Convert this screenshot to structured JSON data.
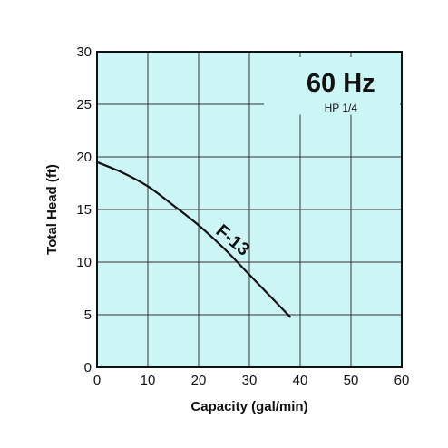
{
  "chart_data": {
    "type": "line",
    "title": "60 Hz",
    "subtitle": "HP 1/4",
    "xlabel": "Capacity (gal/min)",
    "ylabel": "Total Head (ft)",
    "xlim": [
      0,
      60
    ],
    "ylim": [
      0,
      30
    ],
    "xticks": [
      "0",
      "10",
      "20",
      "30",
      "40",
      "50",
      "60"
    ],
    "yticks": [
      "0",
      "5",
      "10",
      "15",
      "20",
      "25",
      "30"
    ],
    "grid": true,
    "series": [
      {
        "name": "F-13",
        "x": [
          0,
          5,
          10,
          15,
          20,
          25,
          30,
          35,
          38
        ],
        "y": [
          19.5,
          18.5,
          17.2,
          15.4,
          13.5,
          11.3,
          8.8,
          6.3,
          4.8
        ]
      }
    ]
  },
  "colors": {
    "plot_background": "#ccf5f5",
    "grid": "#333333",
    "curve": "#111111"
  }
}
